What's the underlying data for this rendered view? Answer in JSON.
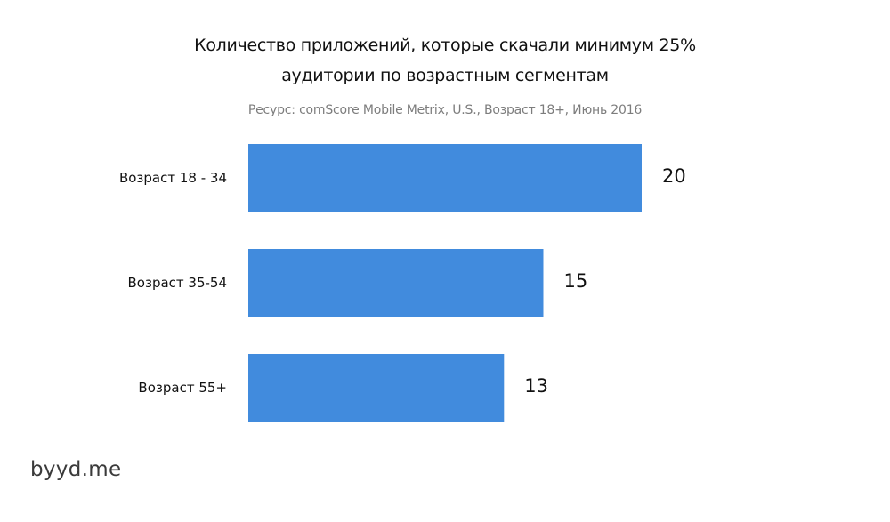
{
  "chart_data": {
    "type": "bar",
    "orientation": "horizontal",
    "title_lines": [
      "Количество приложений, которые скачали минимум 25%",
      "аудитории по возрастным сегментам"
    ],
    "subtitle": "Ресурс: comScore Mobile Metrix, U.S., Возраст 18+, Июнь 2016",
    "categories": [
      "Возраст 18 - 34",
      "Возраст 35-54",
      "Возраст 55+"
    ],
    "values": [
      20,
      15,
      13
    ],
    "value_labels": [
      "20",
      "15",
      "13"
    ],
    "xlabel": "",
    "ylabel": "",
    "xlim": [
      0,
      20
    ],
    "grid": false,
    "bar_color": "#418BDD"
  },
  "watermark": "byyd.me"
}
